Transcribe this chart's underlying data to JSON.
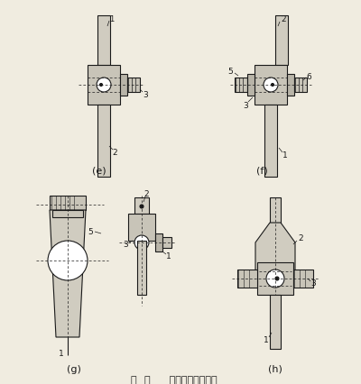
{
  "background_color": "#f0ece0",
  "fig_width": 4.0,
  "fig_height": 4.27,
  "dpi": 100,
  "label_e": "(e)",
  "label_f": "(f)",
  "label_g": "(g)",
  "label_h": "(h)",
  "line_color": "#1a1a1a",
  "caption": "圖      滑動軸承式轉動副",
  "fill_color": "#b8b4a8",
  "fill_color2": "#c8c4b8",
  "shaft_color": "#d0ccc0"
}
